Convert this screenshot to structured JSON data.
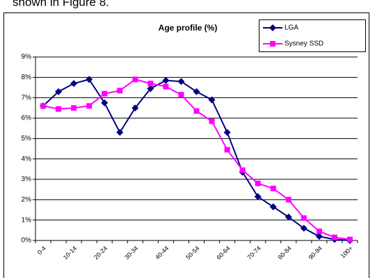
{
  "page_text": "shown in Figure 8.",
  "chart_data": {
    "type": "line",
    "title": "Age profile (%)",
    "categories": [
      "0-4",
      null,
      "10-14",
      null,
      "20-24",
      null,
      "30-34",
      null,
      "40-44",
      null,
      "50-54",
      null,
      "60-64",
      null,
      "70-74",
      null,
      "80-84",
      null,
      "90-94",
      null,
      "100+"
    ],
    "series": [
      {
        "name": "LGA",
        "color": "#000080",
        "marker": "diamond",
        "values": [
          6.6,
          7.3,
          7.7,
          7.9,
          6.75,
          5.3,
          6.5,
          7.45,
          7.85,
          7.8,
          7.3,
          6.9,
          5.3,
          3.35,
          2.15,
          1.65,
          1.15,
          0.6,
          0.2,
          0.05,
          0.0
        ]
      },
      {
        "name": "Sysney SSD",
        "color": "#ff00ff",
        "marker": "square",
        "values": [
          6.6,
          6.45,
          6.5,
          6.6,
          7.2,
          7.35,
          7.9,
          7.7,
          7.55,
          7.15,
          6.35,
          5.85,
          4.45,
          3.45,
          2.8,
          2.55,
          2.0,
          1.1,
          0.45,
          0.15,
          0.05
        ]
      }
    ],
    "ylim": [
      0,
      9
    ],
    "yticks": [
      {
        "value": 0,
        "label": "0%"
      },
      {
        "value": 1,
        "label": "1%"
      },
      {
        "value": 2,
        "label": "2%"
      },
      {
        "value": 3,
        "label": "3%"
      },
      {
        "value": 4,
        "label": "4%"
      },
      {
        "value": 5,
        "label": "5%"
      },
      {
        "value": 6,
        "label": "6%"
      },
      {
        "value": 7,
        "label": "7%"
      },
      {
        "value": 8,
        "label": "8%"
      },
      {
        "value": 9,
        "label": "9%"
      }
    ],
    "grid": true,
    "legend": "top-right"
  }
}
